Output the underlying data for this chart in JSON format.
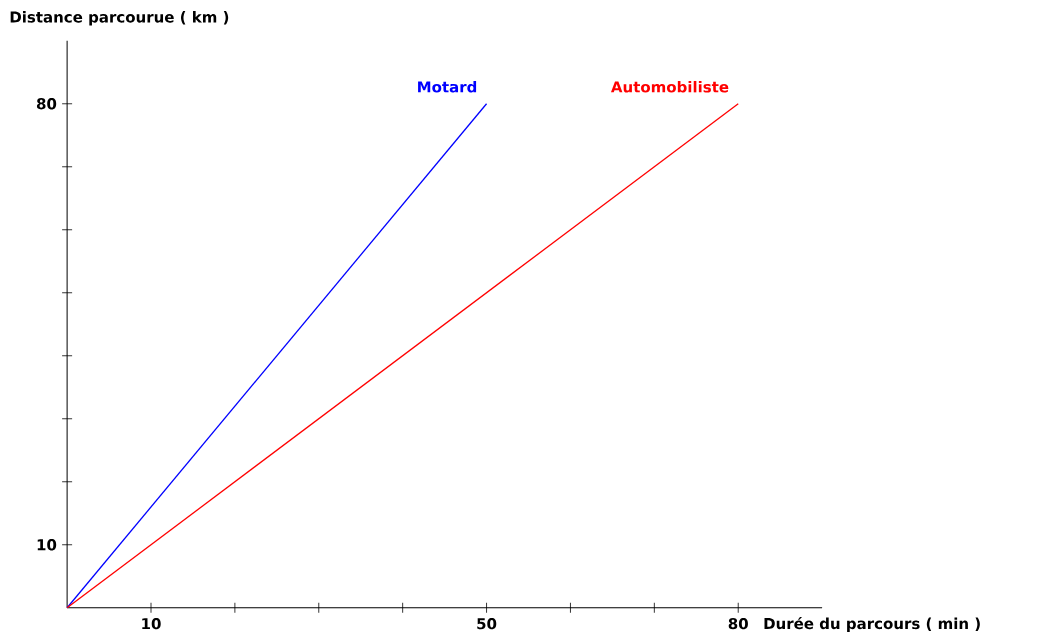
{
  "chart_data": {
    "type": "line",
    "xlabel": "Durée du parcours ( min )",
    "ylabel": "Distance parcourue ( km )",
    "xlim": [
      0,
      90
    ],
    "ylim": [
      0,
      90
    ],
    "xticks": [
      10,
      {
        "value": 20,
        "label": null
      },
      {
        "value": 30,
        "label": null
      },
      {
        "value": 40,
        "label": null
      },
      50,
      {
        "value": 60,
        "label": null
      },
      {
        "value": 70,
        "label": null
      },
      80
    ],
    "yticks": [
      10,
      {
        "value": 20,
        "label": null
      },
      {
        "value": 30,
        "label": null
      },
      {
        "value": 40,
        "label": null
      },
      {
        "value": 50,
        "label": null
      },
      {
        "value": 60,
        "label": null
      },
      {
        "value": 70,
        "label": null
      },
      80
    ],
    "marker": "none",
    "line_style": "solid",
    "series": [
      {
        "name": "Motard",
        "color": "#0000ff",
        "x": [
          0,
          50
        ],
        "values": [
          0,
          80
        ]
      },
      {
        "name": "Automobiliste",
        "color": "#ff0000",
        "x": [
          0,
          80
        ],
        "values": [
          0,
          80
        ]
      }
    ]
  }
}
